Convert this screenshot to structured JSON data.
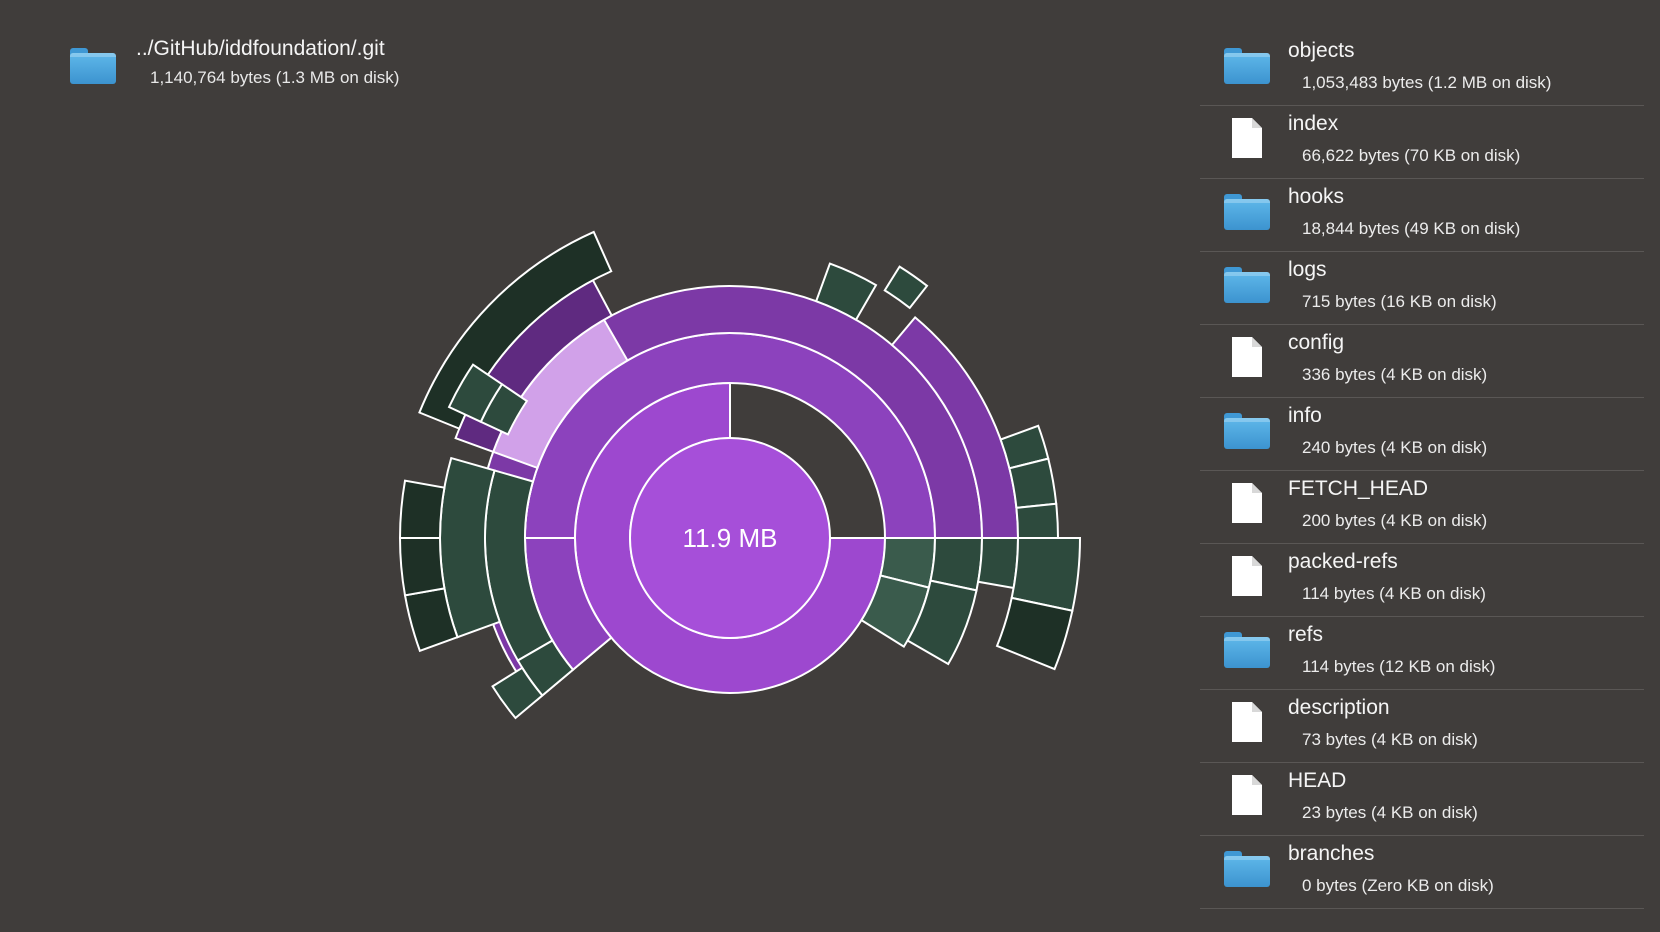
{
  "header": {
    "path": "../GitHub/iddfoundation/.git",
    "size": "1,140,764 bytes (1.3 MB on disk)",
    "icon": "folder-icon"
  },
  "chart_data": {
    "type": "sunburst",
    "center_label": "11.9 MB"
  },
  "colors": {
    "background": "#403d3b",
    "purple_center": "#a64fd9",
    "purple_ring1": "#9d48cf",
    "purple_ring2": "#8c42bd",
    "purple_ring3": "#7c39a6",
    "purple_ring4": "#5f2a80",
    "highlight": "#d1a1e9",
    "green": "#2d4a3d",
    "green_light": "#3a5b4c",
    "green_dark": "#1e3026",
    "folder": "#4aa6e0"
  },
  "items": [
    {
      "name": "objects",
      "size": "1,053,483 bytes (1.2 MB on disk)",
      "type": "folder"
    },
    {
      "name": "index",
      "size": "66,622 bytes (70 KB on disk)",
      "type": "file"
    },
    {
      "name": "hooks",
      "size": "18,844 bytes (49 KB on disk)",
      "type": "folder"
    },
    {
      "name": "logs",
      "size": "715 bytes (16 KB on disk)",
      "type": "folder"
    },
    {
      "name": "config",
      "size": "336 bytes (4 KB on disk)",
      "type": "file"
    },
    {
      "name": "info",
      "size": "240 bytes (4 KB on disk)",
      "type": "folder"
    },
    {
      "name": "FETCH_HEAD",
      "size": "200 bytes (4 KB on disk)",
      "type": "file"
    },
    {
      "name": "packed-refs",
      "size": "114 bytes (4 KB on disk)",
      "type": "file"
    },
    {
      "name": "refs",
      "size": "114 bytes (12 KB on disk)",
      "type": "folder"
    },
    {
      "name": "description",
      "size": "73 bytes (4 KB on disk)",
      "type": "file"
    },
    {
      "name": "HEAD",
      "size": "23 bytes (4 KB on disk)",
      "type": "file"
    },
    {
      "name": "branches",
      "size": "0 bytes (Zero KB on disk)",
      "type": "folder"
    }
  ]
}
